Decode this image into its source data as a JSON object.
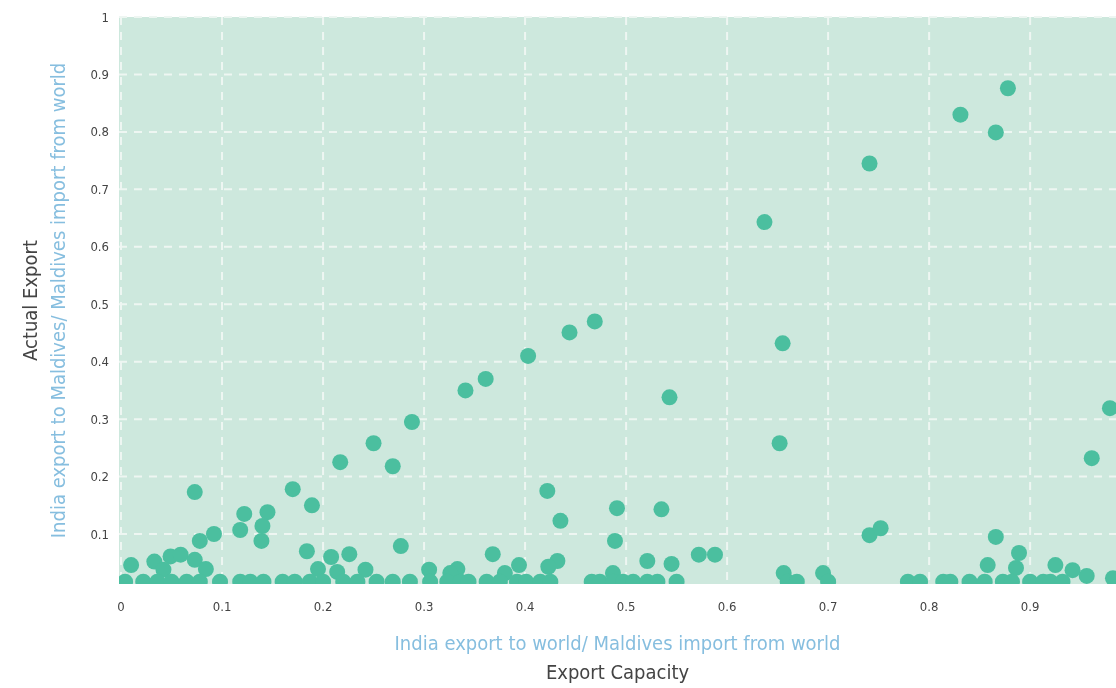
{
  "chart_data": {
    "type": "scatter",
    "xlabel": "India export to world/ Maldives import from world\nExport Capacity",
    "ylabel": "India export to Maldives/ Maldives import from world\nActual Export",
    "x": [
      0.637,
      0.741,
      0.831,
      0.866,
      0.878,
      0.655,
      0.652,
      0.979,
      0.961,
      0.25,
      0.288,
      0.341,
      0.361,
      0.403,
      0.444,
      0.469,
      0.217,
      0.269,
      0.073,
      0.17,
      0.189,
      0.122,
      0.145,
      0.118,
      0.14,
      0.139,
      0.078,
      0.092,
      0.184,
      0.208,
      0.226,
      0.277,
      0.01,
      0.033,
      0.049,
      0.059,
      0.073,
      0.084,
      0.042,
      0.195,
      0.214,
      0.242,
      0.305,
      0.422,
      0.435,
      0.491,
      0.489,
      0.535,
      0.543,
      0.368,
      0.432,
      0.423,
      0.521,
      0.545,
      0.572,
      0.588,
      0.394,
      0.333,
      0.741,
      0.752,
      0.866,
      0.858,
      0.886,
      0.889,
      0.925,
      0.942,
      0.956,
      0.982,
      0.326,
      0.38,
      0.487,
      0.656,
      0.695,
      0.004,
      0.022,
      0.036,
      0.05,
      0.065,
      0.078,
      0.098,
      0.118,
      0.128,
      0.141,
      0.16,
      0.172,
      0.187,
      0.2,
      0.22,
      0.234,
      0.253,
      0.269,
      0.286,
      0.306,
      0.323,
      0.336,
      0.344,
      0.362,
      0.375,
      0.392,
      0.401,
      0.415,
      0.425,
      0.466,
      0.474,
      0.487,
      0.497,
      0.507,
      0.521,
      0.531,
      0.55,
      0.66,
      0.669,
      0.7,
      0.779,
      0.791,
      0.814,
      0.821,
      0.84,
      0.855,
      0.873,
      0.882,
      0.9,
      0.913,
      0.92,
      0.932
    ],
    "values": [
      0.643,
      0.745,
      0.83,
      0.799,
      0.876,
      0.432,
      0.258,
      0.319,
      0.232,
      0.258,
      0.295,
      0.35,
      0.37,
      0.41,
      0.451,
      0.47,
      0.225,
      0.218,
      0.173,
      0.178,
      0.15,
      0.135,
      0.138,
      0.107,
      0.114,
      0.088,
      0.088,
      0.1,
      0.07,
      0.06,
      0.065,
      0.079,
      0.046,
      0.052,
      0.061,
      0.064,
      0.055,
      0.039,
      0.038,
      0.039,
      0.034,
      0.038,
      0.038,
      0.175,
      0.123,
      0.145,
      0.088,
      0.143,
      0.338,
      0.065,
      0.053,
      0.043,
      0.053,
      0.048,
      0.064,
      0.064,
      0.046,
      0.039,
      0.098,
      0.11,
      0.095,
      0.046,
      0.041,
      0.067,
      0.046,
      0.037,
      0.027,
      0.023,
      0.032,
      0.032,
      0.032,
      0.032,
      0.032,
      0.017,
      0.017,
      0.017,
      0.017,
      0.017,
      0.017,
      0.017,
      0.017,
      0.017,
      0.017,
      0.017,
      0.017,
      0.017,
      0.017,
      0.017,
      0.017,
      0.017,
      0.017,
      0.017,
      0.017,
      0.017,
      0.017,
      0.017,
      0.017,
      0.017,
      0.017,
      0.017,
      0.017,
      0.017,
      0.017,
      0.017,
      0.017,
      0.017,
      0.017,
      0.017,
      0.017,
      0.017,
      0.017,
      0.017,
      0.017,
      0.017,
      0.017,
      0.017,
      0.017,
      0.017,
      0.017,
      0.017,
      0.017,
      0.017,
      0.017,
      0.017,
      0.017
    ],
    "color": "#4bbf9f",
    "xlim": [
      -0.002,
      0.985
    ],
    "ylim": [
      0.013,
      1
    ],
    "xticks": [
      0,
      0.1,
      0.2,
      0.3,
      0.4,
      0.5,
      0.6,
      0.7,
      0.8,
      0.9
    ],
    "yticks": [
      0.1,
      0.2,
      0.3,
      0.4,
      0.5,
      0.6,
      0.7,
      0.8,
      0.9,
      1
    ],
    "grid": true,
    "marker": "circle"
  }
}
